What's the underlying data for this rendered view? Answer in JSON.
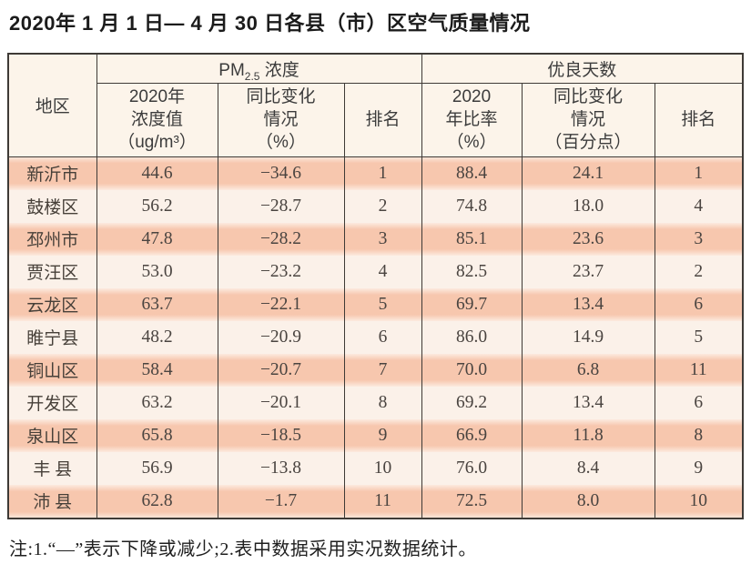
{
  "title": "2020年 1 月 1 日— 4 月 30 日各县（市）区空气质量情况",
  "note": "注:1.“—”表示下降或减少;2.表中数据采用实况数据统计。",
  "colors": {
    "row_salmon": "#f7c7ae",
    "row_light": "#fbf1e9",
    "header_bg": "#fcf4ea",
    "border": "#3e3a36"
  },
  "table": {
    "region_col": "地区",
    "group_pm": {
      "prefix": "PM",
      "sub": "2.5",
      "suffix": " 浓度"
    },
    "group_days": "优良天数",
    "subheaders": {
      "pm_value": "2020年\n浓度值\n（ug/m³）",
      "pm_change": "同比变化\n情况\n（%）",
      "pm_rank": "排名",
      "days_rate": "2020\n年比率\n（%）",
      "days_change": "同比变化\n情况\n（百分点）",
      "days_rank": "排名"
    },
    "rows": [
      {
        "region": "新沂市",
        "pm_value": "44.6",
        "pm_change": "−34.6",
        "pm_rank": "1",
        "days_rate": "88.4",
        "days_change": "24.1",
        "days_rank": "1"
      },
      {
        "region": "鼓楼区",
        "pm_value": "56.2",
        "pm_change": "−28.7",
        "pm_rank": "2",
        "days_rate": "74.8",
        "days_change": "18.0",
        "days_rank": "4"
      },
      {
        "region": "邳州市",
        "pm_value": "47.8",
        "pm_change": "−28.2",
        "pm_rank": "3",
        "days_rate": "85.1",
        "days_change": "23.6",
        "days_rank": "3"
      },
      {
        "region": "贾汪区",
        "pm_value": "53.0",
        "pm_change": "−23.2",
        "pm_rank": "4",
        "days_rate": "82.5",
        "days_change": "23.7",
        "days_rank": "2"
      },
      {
        "region": "云龙区",
        "pm_value": "63.7",
        "pm_change": "−22.1",
        "pm_rank": "5",
        "days_rate": "69.7",
        "days_change": "13.4",
        "days_rank": "6"
      },
      {
        "region": "睢宁县",
        "pm_value": "48.2",
        "pm_change": "−20.9",
        "pm_rank": "6",
        "days_rate": "86.0",
        "days_change": "14.9",
        "days_rank": "5"
      },
      {
        "region": "铜山区",
        "pm_value": "58.4",
        "pm_change": "−20.7",
        "pm_rank": "7",
        "days_rate": "70.0",
        "days_change": "6.8",
        "days_rank": "11"
      },
      {
        "region": "开发区",
        "pm_value": "63.2",
        "pm_change": "−20.1",
        "pm_rank": "8",
        "days_rate": "69.2",
        "days_change": "13.4",
        "days_rank": "6"
      },
      {
        "region": "泉山区",
        "pm_value": "65.8",
        "pm_change": "−18.5",
        "pm_rank": "9",
        "days_rate": "66.9",
        "days_change": "11.8",
        "days_rank": "8"
      },
      {
        "region": "丰 县",
        "pm_value": "56.9",
        "pm_change": "−13.8",
        "pm_rank": "10",
        "days_rate": "76.0",
        "days_change": "8.4",
        "days_rank": "9"
      },
      {
        "region": "沛 县",
        "pm_value": "62.8",
        "pm_change": "−1.7",
        "pm_rank": "11",
        "days_rate": "72.5",
        "days_change": "8.0",
        "days_rank": "10"
      }
    ]
  }
}
